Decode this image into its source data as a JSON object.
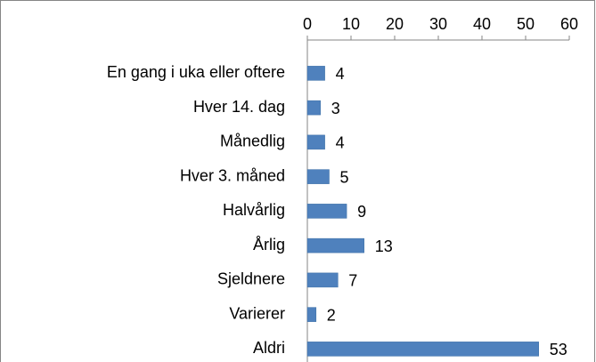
{
  "chart_data": {
    "type": "bar",
    "orientation": "horizontal",
    "categories": [
      "En gang i uka eller oftere",
      "Hver 14. dag",
      "Månedlig",
      "Hver 3. måned",
      "Halvårlig",
      "Årlig",
      "Sjeldnere",
      "Varierer",
      "Aldri"
    ],
    "values": [
      4,
      3,
      4,
      5,
      9,
      13,
      7,
      2,
      53
    ],
    "color": "#4f81bd",
    "xlim": [
      0,
      60
    ],
    "xticks": [
      0,
      10,
      20,
      30,
      40,
      50,
      60
    ],
    "grid": false
  }
}
